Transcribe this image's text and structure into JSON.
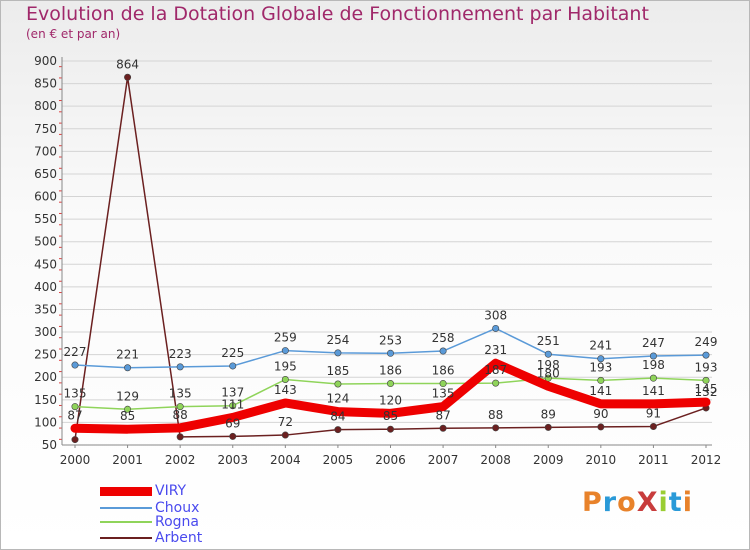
{
  "title": "Evolution de la Dotation Globale de Fonctionnement par Habitant",
  "subtitle": "(en € et par an)",
  "logo": {
    "text": "ProXiti",
    "colors": [
      "#e8822a",
      "#2a9ad8",
      "#e8822a",
      "#c83c3c",
      "#9acd32",
      "#2a9ad8",
      "#e8822a"
    ]
  },
  "chart_data": {
    "type": "line",
    "title": "Evolution de la Dotation Globale de Fonctionnement par Habitant",
    "subtitle": "(en € et par an)",
    "categories": [
      "2000",
      "2001",
      "2002",
      "2003",
      "2004",
      "2005",
      "2006",
      "2007",
      "2008",
      "2009",
      "2010",
      "2011",
      "2012"
    ],
    "ylim": [
      50,
      900
    ],
    "yticks": [
      50,
      100,
      150,
      200,
      250,
      300,
      350,
      400,
      450,
      500,
      550,
      600,
      650,
      700,
      750,
      800,
      850,
      900
    ],
    "legend_position": "bottom-left",
    "series": [
      {
        "name": "Arbent",
        "color": "#6b2020",
        "values": [
          62,
          864,
          68,
          69,
          72,
          84,
          85,
          87,
          88,
          89,
          90,
          91,
          132
        ],
        "labels": [
          "",
          "864",
          "",
          "69",
          "72",
          "84",
          "85",
          "87",
          "88",
          "89",
          "90",
          "91",
          ""
        ]
      },
      {
        "name": "Rogna",
        "color": "#8fd45a",
        "values": [
          135,
          129,
          135,
          137,
          195,
          185,
          186,
          186,
          187,
          198,
          193,
          198,
          193
        ],
        "labels": [
          "135",
          "129",
          "135",
          "137",
          "195",
          "185",
          "186",
          "186",
          "187",
          "198",
          "193",
          "198",
          "193"
        ]
      },
      {
        "name": "Choux",
        "color": "#5a9ad8",
        "values": [
          227,
          221,
          223,
          225,
          259,
          254,
          253,
          258,
          308,
          251,
          241,
          247,
          249
        ],
        "labels": [
          "227",
          "221",
          "223",
          "225",
          "259",
          "254",
          "253",
          "258",
          "308",
          "251",
          "241",
          "247",
          "249"
        ]
      },
      {
        "name": "VIRY",
        "color": "#ee0000",
        "values": [
          87,
          85,
          88,
          111,
          143,
          124,
          120,
          135,
          231,
          180,
          141,
          141,
          145
        ],
        "labels": [
          "87",
          "85",
          "88",
          "111",
          "143",
          "124",
          "120",
          "135",
          "231",
          "180",
          "141",
          "141",
          "145"
        ]
      }
    ],
    "extra_labels": [
      {
        "series": "Arbent",
        "index": 12,
        "text": "132"
      }
    ]
  },
  "legend": [
    {
      "name": "VIRY",
      "color": "#ee0000"
    },
    {
      "name": "Choux",
      "color": "#5a9ad8"
    },
    {
      "name": "Rogna",
      "color": "#8fd45a"
    },
    {
      "name": "Arbent",
      "color": "#6b2020"
    }
  ]
}
